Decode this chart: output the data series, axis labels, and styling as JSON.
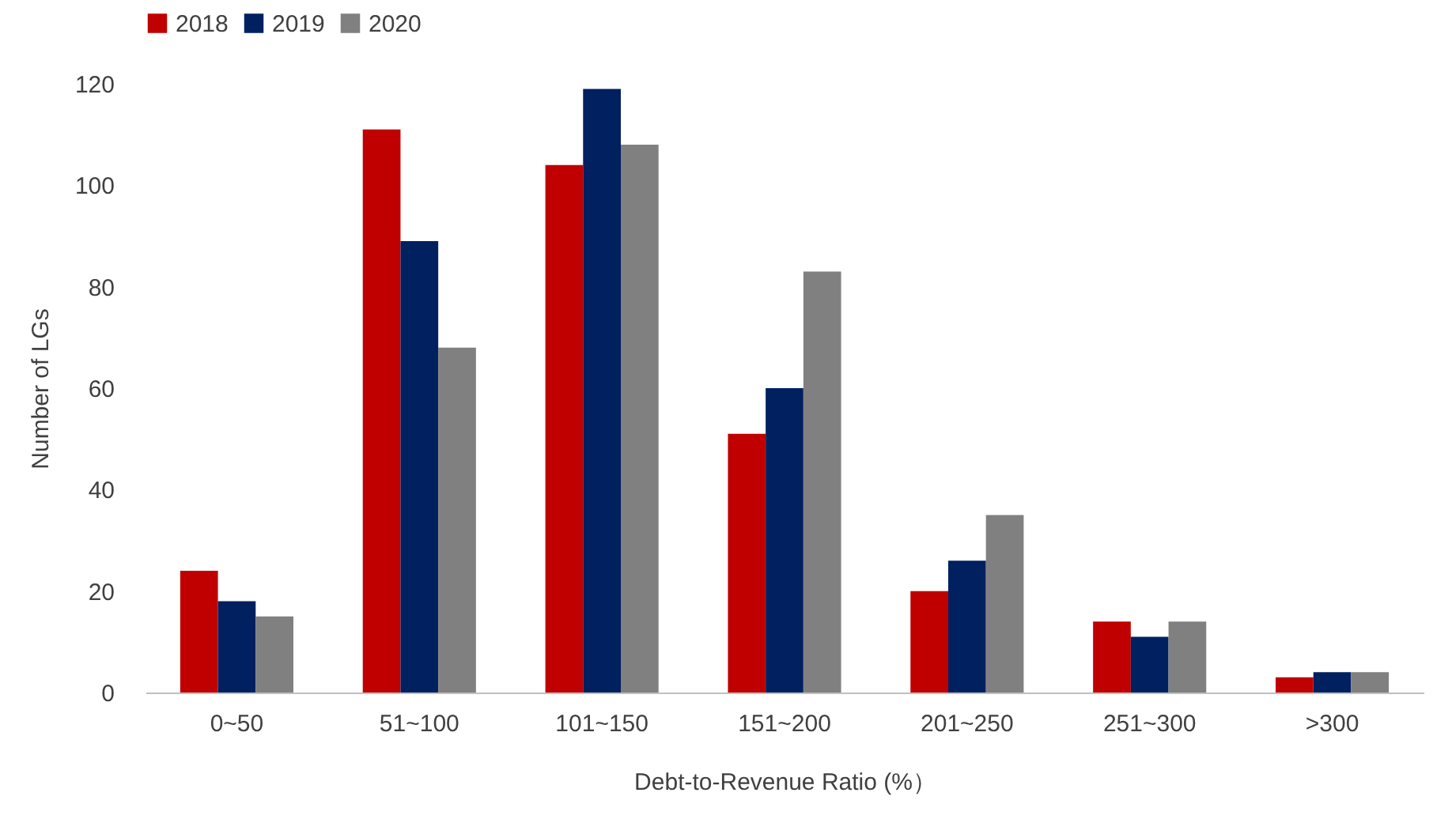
{
  "chart_data": {
    "type": "bar",
    "xlabel": "Debt-to-Revenue Ratio (%）",
    "ylabel": "Number of LGs",
    "categories": [
      "0~50",
      "51~100",
      "101~150",
      "151~200",
      "201~250",
      "251~300",
      ">300"
    ],
    "series": [
      {
        "name": "2018",
        "color": "#c00000",
        "values": [
          24,
          111,
          104,
          51,
          20,
          14,
          3
        ]
      },
      {
        "name": "2019",
        "color": "#002060",
        "values": [
          18,
          89,
          119,
          60,
          26,
          11,
          4
        ]
      },
      {
        "name": "2020",
        "color": "#808080",
        "values": [
          15,
          68,
          108,
          83,
          35,
          14,
          4
        ]
      }
    ],
    "ylim": [
      0,
      120
    ],
    "yticks": [
      0,
      20,
      40,
      60,
      80,
      100,
      120
    ],
    "grid": false,
    "legend": "top"
  }
}
